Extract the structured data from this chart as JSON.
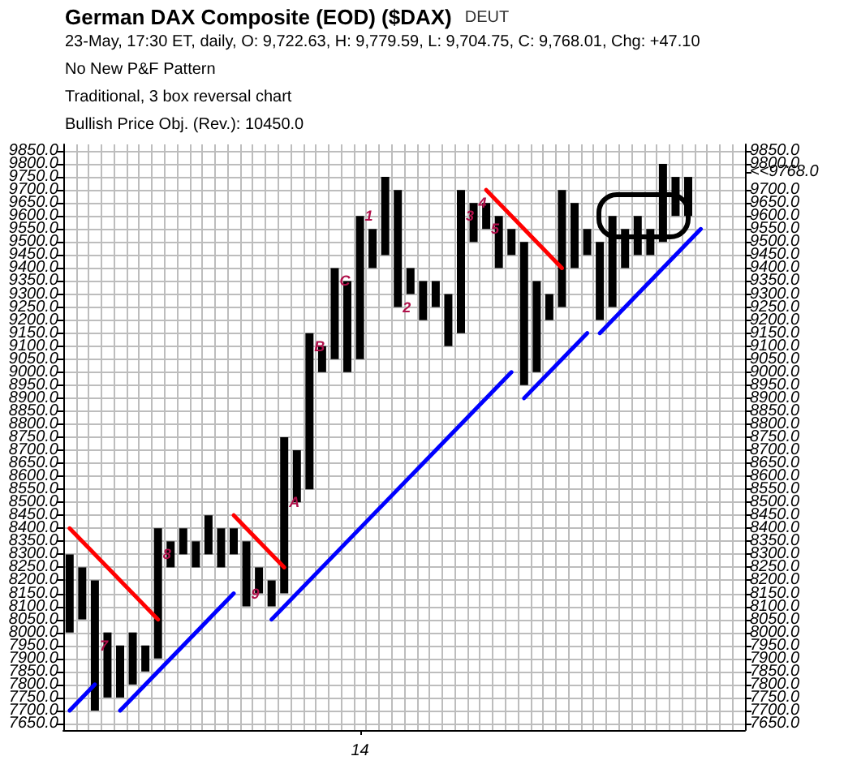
{
  "chart_data": {
    "type": "bar",
    "title": "German DAX Composite (EOD) ($DAX)",
    "subtitle": "23-May, 17:30 ET, daily, O: 9,722.63, H: 9,779.59, L: 9,704.75, C: 9,768.01, Chg: +47.10",
    "annotations": [
      "DEUT",
      "No New P&F Pattern",
      "Traditional, 3 box reversal chart",
      "Bullish Price Obj. (Rev.): 10450.0",
      {
        "text": "7",
        "y": 7950
      },
      {
        "text": "8",
        "y": 8300
      },
      {
        "text": "9",
        "y": 8150
      },
      {
        "text": "A",
        "y": 8500
      },
      {
        "text": "B",
        "y": 9100
      },
      {
        "text": "C",
        "y": 9350
      },
      {
        "text": "1",
        "y": 9600
      },
      {
        "text": "2",
        "y": 9250
      },
      {
        "text": "3",
        "y": 9600
      },
      {
        "text": "4",
        "y": 9650
      },
      {
        "text": "5",
        "y": 9550
      }
    ],
    "categories": [
      null,
      null,
      null,
      null,
      null,
      null,
      null,
      null,
      null,
      null,
      null,
      null,
      null,
      null,
      null,
      null,
      null,
      null,
      null,
      null,
      null,
      null,
      null,
      "14",
      null,
      null,
      null,
      null,
      null,
      null,
      null,
      null,
      null,
      null,
      null,
      null,
      null,
      null,
      null,
      null,
      null,
      null,
      null,
      null,
      null,
      null,
      null,
      null,
      null,
      null,
      null,
      null,
      null,
      null
    ],
    "series": [
      {
        "color": "#000000",
        "base": [
          8000,
          8050,
          7700,
          7750,
          7750,
          7800,
          7850,
          7900,
          8250,
          8300,
          8250,
          8300,
          8250,
          8300,
          8100,
          8150,
          8100,
          8150,
          8500,
          8550,
          9000,
          9050,
          9000,
          9050,
          9400,
          9450,
          9250,
          9300,
          9200,
          9250,
          9100,
          9150,
          9500,
          9550,
          9400,
          9450,
          8950,
          9000,
          9200,
          9250,
          9400,
          9450,
          9200,
          9250,
          9400,
          9450,
          9450,
          9500,
          9600,
          9600,
          null,
          null,
          null,
          null
        ],
        "values": [
          300,
          200,
          500,
          250,
          200,
          200,
          100,
          500,
          100,
          100,
          100,
          150,
          150,
          100,
          250,
          100,
          100,
          600,
          200,
          600,
          100,
          350,
          350,
          550,
          150,
          300,
          450,
          100,
          150,
          100,
          200,
          550,
          150,
          100,
          200,
          100,
          550,
          350,
          100,
          450,
          250,
          100,
          300,
          350,
          150,
          150,
          100,
          300,
          150,
          150,
          null,
          null,
          null,
          null
        ]
      },
      {
        "type": "line",
        "color": "#ff0000",
        "values": [
          8400,
          null,
          null,
          null,
          null,
          null,
          null,
          8050,
          null,
          null,
          null,
          null,
          null,
          null,
          null,
          null,
          null,
          null,
          null,
          null,
          null,
          null,
          null,
          null,
          null,
          null,
          null,
          null,
          null,
          null,
          null,
          null,
          null,
          null,
          null,
          null,
          null,
          null,
          null,
          null,
          null,
          null,
          null,
          null,
          null,
          null,
          null,
          null,
          null,
          null,
          null,
          null,
          null,
          null
        ]
      },
      {
        "type": "line",
        "color": "#ff0000",
        "values": [
          null,
          null,
          null,
          null,
          null,
          null,
          null,
          null,
          null,
          null,
          null,
          null,
          null,
          8450,
          null,
          null,
          null,
          8250,
          null,
          null,
          null,
          null,
          null,
          null,
          null,
          null,
          null,
          null,
          null,
          null,
          null,
          null,
          null,
          null,
          null,
          null,
          null,
          null,
          null,
          null,
          null,
          null,
          null,
          null,
          null,
          null,
          null,
          null,
          null,
          null,
          null,
          null,
          null,
          null
        ]
      },
      {
        "type": "line",
        "color": "#ff0000",
        "values": [
          null,
          null,
          null,
          null,
          null,
          null,
          null,
          null,
          null,
          null,
          null,
          null,
          null,
          null,
          null,
          null,
          null,
          null,
          null,
          null,
          null,
          null,
          null,
          null,
          null,
          null,
          null,
          null,
          null,
          null,
          null,
          null,
          null,
          9700,
          null,
          null,
          null,
          null,
          null,
          9400,
          null,
          null,
          null,
          null,
          null,
          null,
          null,
          null,
          null,
          null,
          null,
          null,
          null,
          null
        ]
      },
      {
        "type": "line",
        "color": "#0000ff",
        "values": [
          7700,
          null,
          7800,
          null,
          null,
          null,
          null,
          null,
          null,
          null,
          null,
          null,
          null,
          null,
          null,
          null,
          null,
          null,
          null,
          null,
          null,
          null,
          null,
          null,
          null,
          null,
          null,
          null,
          null,
          null,
          null,
          null,
          null,
          null,
          null,
          null,
          null,
          null,
          null,
          null,
          null,
          null,
          null,
          null,
          null,
          null,
          null,
          null,
          null,
          null,
          null,
          null,
          null,
          null
        ]
      },
      {
        "type": "line",
        "color": "#0000ff",
        "values": [
          null,
          null,
          null,
          null,
          7700,
          null,
          null,
          null,
          null,
          null,
          null,
          null,
          null,
          8150,
          null,
          null,
          null,
          null,
          null,
          null,
          null,
          null,
          null,
          null,
          null,
          null,
          null,
          null,
          null,
          null,
          null,
          null,
          null,
          null,
          null,
          null,
          null,
          null,
          null,
          null,
          null,
          null,
          null,
          null,
          null,
          null,
          null,
          null,
          null,
          null,
          null,
          null,
          null,
          null
        ]
      },
      {
        "type": "line",
        "color": "#0000ff",
        "values": [
          null,
          null,
          null,
          null,
          null,
          null,
          null,
          null,
          null,
          null,
          null,
          null,
          null,
          null,
          null,
          null,
          8050,
          null,
          null,
          null,
          null,
          null,
          null,
          null,
          null,
          null,
          null,
          null,
          null,
          null,
          null,
          null,
          null,
          null,
          null,
          9000,
          null,
          null,
          null,
          null,
          null,
          null,
          null,
          null,
          null,
          null,
          null,
          null,
          null,
          null,
          null,
          null,
          null,
          null
        ]
      },
      {
        "type": "line",
        "color": "#0000ff",
        "values": [
          null,
          null,
          null,
          null,
          null,
          null,
          null,
          null,
          null,
          null,
          null,
          null,
          null,
          null,
          null,
          null,
          null,
          null,
          null,
          null,
          null,
          null,
          null,
          null,
          null,
          null,
          null,
          null,
          null,
          null,
          null,
          null,
          null,
          null,
          null,
          null,
          8900,
          null,
          null,
          null,
          null,
          9150,
          null,
          null,
          null,
          null,
          null,
          null,
          null,
          null,
          null,
          null,
          null,
          null
        ]
      },
      {
        "type": "line",
        "color": "#0000ff",
        "values": [
          null,
          null,
          null,
          null,
          null,
          null,
          null,
          null,
          null,
          null,
          null,
          null,
          null,
          null,
          null,
          null,
          null,
          null,
          null,
          null,
          null,
          null,
          null,
          null,
          null,
          null,
          null,
          null,
          null,
          null,
          null,
          null,
          null,
          null,
          null,
          null,
          null,
          null,
          null,
          null,
          null,
          null,
          9150,
          null,
          null,
          null,
          null,
          null,
          null,
          null,
          9550,
          null,
          null,
          null
        ]
      }
    ],
    "ylim": [
      7625,
      9875
    ],
    "yticks": [
      {
        "value": 7650,
        "label": "7650.0"
      },
      {
        "value": 7700,
        "label": "7700.0"
      },
      {
        "value": 7750,
        "label": "7750.0"
      },
      {
        "value": 7800,
        "label": "7800.0"
      },
      {
        "value": 7850,
        "label": "7850.0"
      },
      {
        "value": 7900,
        "label": "7900.0"
      },
      {
        "value": 7950,
        "label": "7950.0"
      },
      {
        "value": 8000,
        "label": "8000.0"
      },
      {
        "value": 8050,
        "label": "8050.0"
      },
      {
        "value": 8100,
        "label": "8100.0"
      },
      {
        "value": 8150,
        "label": "8150.0"
      },
      {
        "value": 8200,
        "label": "8200.0"
      },
      {
        "value": 8250,
        "label": "8250.0"
      },
      {
        "value": 8300,
        "label": "8300.0"
      },
      {
        "value": 8350,
        "label": "8350.0"
      },
      {
        "value": 8400,
        "label": "8400.0"
      },
      {
        "value": 8450,
        "label": "8450.0"
      },
      {
        "value": 8500,
        "label": "8500.0"
      },
      {
        "value": 8550,
        "label": "8550.0"
      },
      {
        "value": 8600,
        "label": "8600.0"
      },
      {
        "value": 8650,
        "label": "8650.0"
      },
      {
        "value": 8700,
        "label": "8700.0"
      },
      {
        "value": 8750,
        "label": "8750.0"
      },
      {
        "value": 8800,
        "label": "8800.0"
      },
      {
        "value": 8850,
        "label": "8850.0"
      },
      {
        "value": 8900,
        "label": "8900.0"
      },
      {
        "value": 8950,
        "label": "8950.0"
      },
      {
        "value": 9000,
        "label": "9000.0"
      },
      {
        "value": 9050,
        "label": "9050.0"
      },
      {
        "value": 9100,
        "label": "9100.0"
      },
      {
        "value": 9150,
        "label": "9150.0"
      },
      {
        "value": 9200,
        "label": "9200.0"
      },
      {
        "value": 9250,
        "label": "9250.0"
      },
      {
        "value": 9300,
        "label": "9300.0"
      },
      {
        "value": 9350,
        "label": "9350.0"
      },
      {
        "value": 9400,
        "label": "9400.0"
      },
      {
        "value": 9450,
        "label": "9450.0"
      },
      {
        "value": 9500,
        "label": "9500.0"
      },
      {
        "value": 9550,
        "label": "9550.0"
      },
      {
        "value": 9600,
        "label": "9600.0"
      },
      {
        "value": 9650,
        "label": "9650.0"
      },
      {
        "value": 9700,
        "label": "9700.0"
      },
      {
        "value": 9750,
        "label": "9750.0"
      },
      {
        "value": 9800,
        "label": "9800.0"
      },
      {
        "value": 9850,
        "label": "9850.0"
      }
    ],
    "y2lim": [
      7625,
      9875
    ],
    "y2ticks": [
      {
        "value": 7650,
        "label": "7650.0"
      },
      {
        "value": 7700,
        "label": "7700.0"
      },
      {
        "value": 7750,
        "label": "7750.0"
      },
      {
        "value": 7800,
        "label": "7800.0"
      },
      {
        "value": 7850,
        "label": "7850.0"
      },
      {
        "value": 7900,
        "label": "7900.0"
      },
      {
        "value": 7950,
        "label": "7950.0"
      },
      {
        "value": 8000,
        "label": "8000.0"
      },
      {
        "value": 8050,
        "label": "8050.0"
      },
      {
        "value": 8100,
        "label": "8100.0"
      },
      {
        "value": 8150,
        "label": "8150.0"
      },
      {
        "value": 8200,
        "label": "8200.0"
      },
      {
        "value": 8250,
        "label": "8250.0"
      },
      {
        "value": 8300,
        "label": "8300.0"
      },
      {
        "value": 8350,
        "label": "8350.0"
      },
      {
        "value": 8400,
        "label": "8400.0"
      },
      {
        "value": 8450,
        "label": "8450.0"
      },
      {
        "value": 8500,
        "label": "8500.0"
      },
      {
        "value": 8550,
        "label": "8550.0"
      },
      {
        "value": 8600,
        "label": "8600.0"
      },
      {
        "value": 8650,
        "label": "8650.0"
      },
      {
        "value": 8700,
        "label": "8700.0"
      },
      {
        "value": 8750,
        "label": "8750.0"
      },
      {
        "value": 8800,
        "label": "8800.0"
      },
      {
        "value": 8850,
        "label": "8850.0"
      },
      {
        "value": 8900,
        "label": "8900.0"
      },
      {
        "value": 8950,
        "label": "8950.0"
      },
      {
        "value": 9000,
        "label": "9000.0"
      },
      {
        "value": 9050,
        "label": "9050.0"
      },
      {
        "value": 9100,
        "label": "9100.0"
      },
      {
        "value": 9150,
        "label": "9150.0"
      },
      {
        "value": 9200,
        "label": "9200.0"
      },
      {
        "value": 9250,
        "label": "9250.0"
      },
      {
        "value": 9300,
        "label": "9300.0"
      },
      {
        "value": 9350,
        "label": "9350.0"
      },
      {
        "value": 9400,
        "label": "9400.0"
      },
      {
        "value": 9450,
        "label": "9450.0"
      },
      {
        "value": 9500,
        "label": "9500.0"
      },
      {
        "value": 9550,
        "label": "9550.0"
      },
      {
        "value": 9600,
        "label": "9600.0"
      },
      {
        "value": 9650,
        "label": "9650.0"
      },
      {
        "value": 9700,
        "label": "9700.0"
      },
      {
        "value": 9768,
        "label": "<<9768.0"
      },
      {
        "value": 9800,
        "label": "9800.0"
      },
      {
        "value": 9850,
        "label": "9850.0"
      }
    ],
    "grid": true
  }
}
